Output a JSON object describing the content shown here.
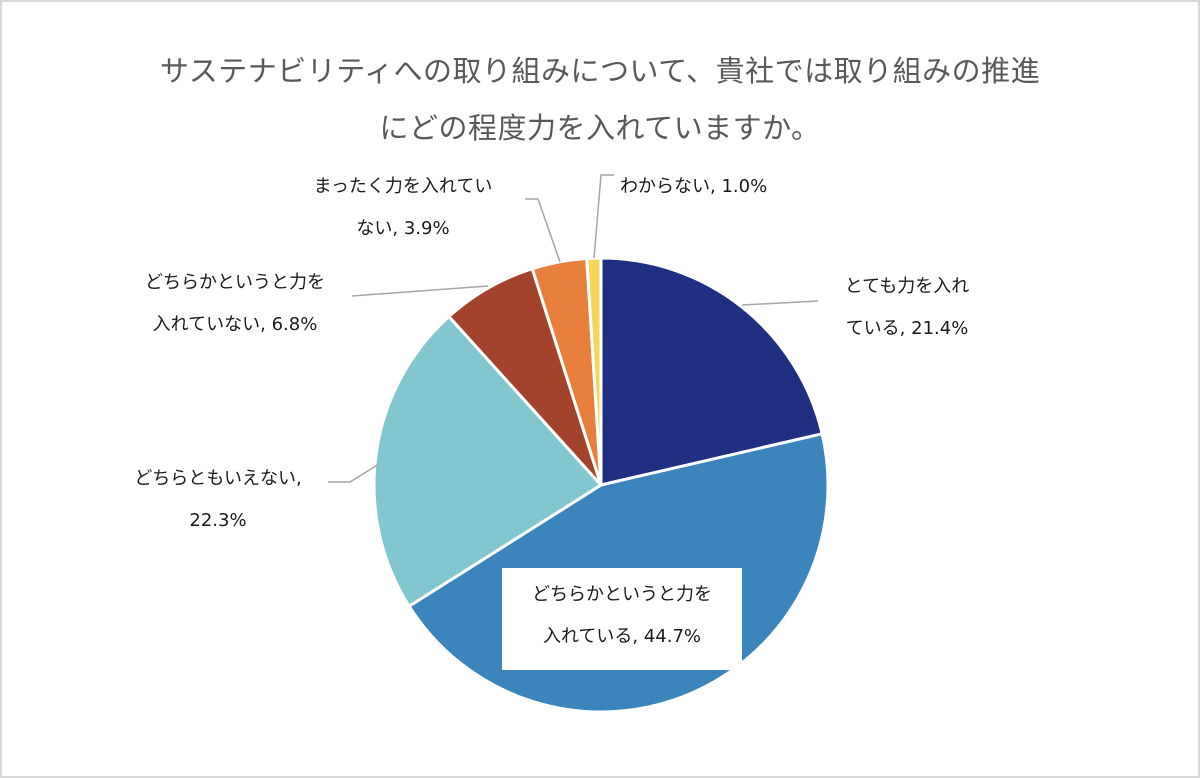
{
  "chart_data": {
    "type": "pie",
    "title": "サステナビリティへの取り組みについて、貴社では取り組みの推進にどの程度力を入れていますか。",
    "title_lines": [
      "サステナビリティへの取り組みについて、貴社では取り組みの推進",
      "にどの程度力を入れていますか。"
    ],
    "categories": [
      "とても力を入れている",
      "どちらかというと力を入れている",
      "どちらともいえない",
      "どちらかというと力を入れていない",
      "まったく力を入れていない",
      "わからない"
    ],
    "values": [
      21.4,
      44.7,
      22.3,
      6.8,
      3.9,
      1.0
    ],
    "unit": "%",
    "start_angle_deg": 0,
    "direction": "clockwise",
    "legend": "none (data labels with leader lines)",
    "colors": [
      "#1f2f82",
      "#3b84bc",
      "#82c6cf",
      "#a3432b",
      "#e87e3c",
      "#f4d65a"
    ]
  },
  "labels": [
    {
      "line1": "とても力を入れ",
      "line2": "ている, 21.4%"
    },
    {
      "line1": "どちらかというと力を",
      "line2": "入れている, 44.7%"
    },
    {
      "line1": "どちらともいえない,",
      "line2": "22.3%"
    },
    {
      "line1": "どちらかというと力を",
      "line2": "入れていない, 6.8%"
    },
    {
      "line1": "まったく力を入れてい",
      "line2": "ない, 3.9%"
    },
    {
      "line1": "わからない, 1.0%"
    }
  ]
}
